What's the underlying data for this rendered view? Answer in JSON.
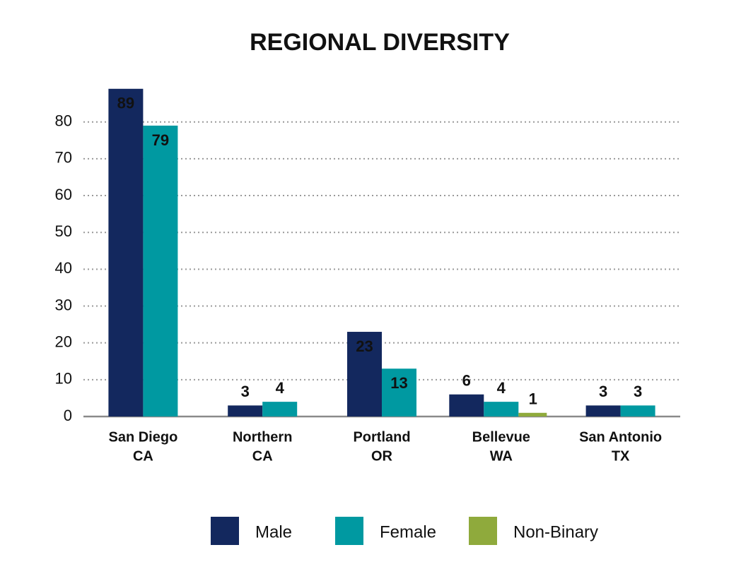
{
  "chart_data": {
    "type": "bar",
    "title": "REGIONAL DIVERSITY",
    "categories": [
      [
        "San Diego",
        "CA"
      ],
      [
        "Northern",
        "CA"
      ],
      [
        "Portland",
        "OR"
      ],
      [
        "Bellevue",
        "WA"
      ],
      [
        "San Antonio",
        "TX"
      ]
    ],
    "series": [
      {
        "name": "Male",
        "color": "#13285e",
        "values": [
          89,
          3,
          23,
          6,
          3
        ]
      },
      {
        "name": "Female",
        "color": "#0099a1",
        "values": [
          79,
          4,
          13,
          4,
          3
        ]
      },
      {
        "name": "Non-Binary",
        "color": "#8faa3c",
        "values": [
          null,
          null,
          null,
          1,
          null
        ]
      }
    ],
    "ylim": [
      0,
      88
    ],
    "yticks": [
      0,
      10,
      20,
      30,
      40,
      50,
      60,
      70,
      80
    ],
    "grid": true,
    "legend": "bottom"
  }
}
